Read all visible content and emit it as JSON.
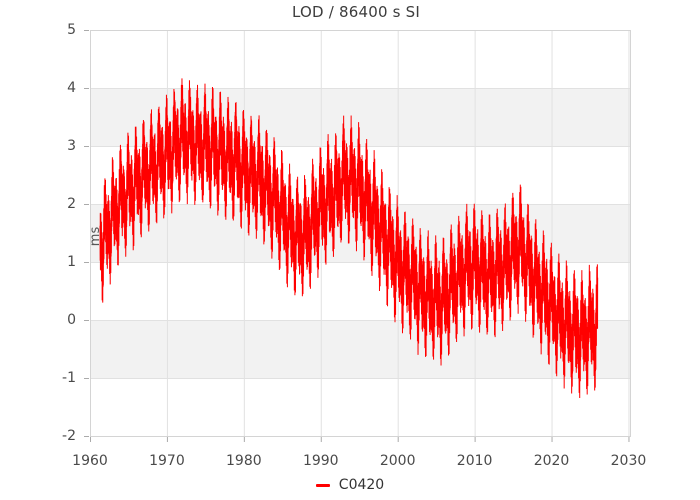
{
  "chart_data": {
    "type": "line",
    "title": "LOD / 86400 s SI",
    "xlabel": "",
    "ylabel": "ms",
    "x_range": [
      1960,
      2030.2
    ],
    "y_range": [
      -2,
      5
    ],
    "x_ticks": [
      1960,
      1970,
      1980,
      1990,
      2000,
      2010,
      2020,
      2030
    ],
    "y_ticks": [
      -2,
      -1,
      0,
      1,
      2,
      3,
      4,
      5
    ],
    "grid": true,
    "legend_position": "bottom-center",
    "alternating_bands": {
      "color": "#f2f2f2",
      "pairs": [
        [
          3,
          4
        ],
        [
          1,
          2
        ],
        [
          -1,
          0
        ]
      ]
    },
    "colors": {
      "series": "#ff0000",
      "band": "#f2f2f2",
      "grid": "#e1e1e1",
      "frame": "#d4d4d4",
      "tick": "#aaaaaa",
      "text": "#4a4a4a"
    },
    "series": [
      {
        "name": "C0420",
        "color": "#ff0000",
        "unit": "ms",
        "t_start": 1961.3,
        "t_end": 2026.0,
        "sample_step_years": 0.0068,
        "trend_knots": [
          [
            1961.3,
            1.3
          ],
          [
            1962,
            1.45
          ],
          [
            1963,
            1.8
          ],
          [
            1964,
            2.05
          ],
          [
            1965,
            2.2
          ],
          [
            1966,
            2.35
          ],
          [
            1967,
            2.5
          ],
          [
            1968,
            2.6
          ],
          [
            1969,
            2.75
          ],
          [
            1970,
            2.85
          ],
          [
            1971,
            3.0
          ],
          [
            1972,
            3.15
          ],
          [
            1973,
            3.1
          ],
          [
            1974,
            3.05
          ],
          [
            1975,
            3.0
          ],
          [
            1976,
            2.95
          ],
          [
            1977,
            2.9
          ],
          [
            1978,
            2.8
          ],
          [
            1979,
            2.75
          ],
          [
            1980,
            2.6
          ],
          [
            1981,
            2.5
          ],
          [
            1982,
            2.45
          ],
          [
            1983,
            2.3
          ],
          [
            1984,
            2.1
          ],
          [
            1985,
            1.85
          ],
          [
            1986,
            1.6
          ],
          [
            1987,
            1.45
          ],
          [
            1988,
            1.45
          ],
          [
            1989,
            1.7
          ],
          [
            1990,
            1.95
          ],
          [
            1991,
            2.1
          ],
          [
            1992,
            2.2
          ],
          [
            1993,
            2.45
          ],
          [
            1994,
            2.4
          ],
          [
            1995,
            2.3
          ],
          [
            1996,
            2.05
          ],
          [
            1997,
            1.8
          ],
          [
            1998,
            1.5
          ],
          [
            1999,
            1.25
          ],
          [
            2000,
            1.0
          ],
          [
            2001,
            0.85
          ],
          [
            2002,
            0.7
          ],
          [
            2003,
            0.5
          ],
          [
            2004,
            0.4
          ],
          [
            2005,
            0.35
          ],
          [
            2006,
            0.35
          ],
          [
            2007,
            0.55
          ],
          [
            2008,
            0.75
          ],
          [
            2009,
            0.9
          ],
          [
            2010,
            0.95
          ],
          [
            2011,
            0.85
          ],
          [
            2012,
            0.75
          ],
          [
            2013,
            0.85
          ],
          [
            2014,
            0.95
          ],
          [
            2015,
            1.15
          ],
          [
            2016,
            1.3
          ],
          [
            2017,
            0.95
          ],
          [
            2018,
            0.65
          ],
          [
            2019,
            0.45
          ],
          [
            2020,
            0.25
          ],
          [
            2021,
            0.05
          ],
          [
            2022,
            -0.1
          ],
          [
            2023,
            -0.2
          ],
          [
            2024,
            -0.25
          ],
          [
            2025,
            -0.15
          ],
          [
            2026,
            -0.05
          ]
        ],
        "oscillations": [
          {
            "cycles_per_year": 1,
            "amp": 0.33,
            "phase": 1.3
          },
          {
            "cycles_per_year": 2,
            "amp": 0.28,
            "phase": 2.6
          },
          {
            "cycles_per_year": 26.74,
            "amp": 0.46,
            "phase": 0.4
          },
          {
            "cycles_per_year": 13.37,
            "amp": 0.14,
            "phase": 1.9
          }
        ],
        "noise_amp": 0.12,
        "seed": 7
      }
    ]
  }
}
